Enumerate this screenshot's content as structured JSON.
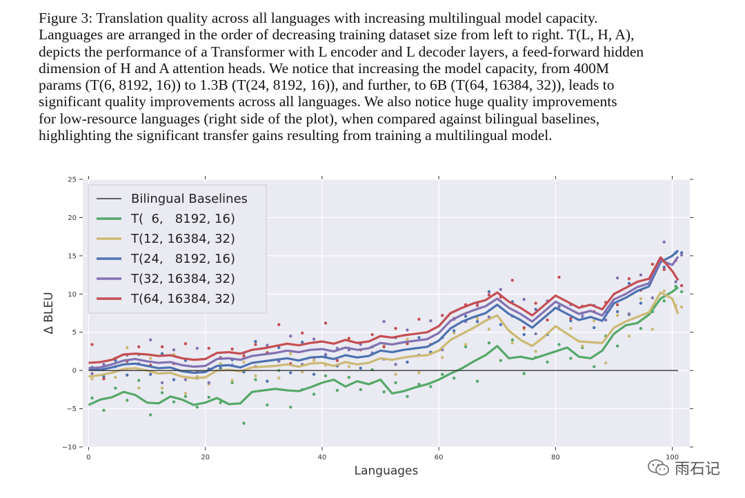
{
  "caption": {
    "lines": [
      "Figure 3: Translation quality across all languages with increasing multilingual model capacity.",
      "Languages are arranged in the order of decreasing training dataset size from left to right. T(L, H, A),",
      "depicts the performance of a Transformer with L encoder and L decoder layers, a feed-forward hidden",
      "dimension of H and A attention heads. We notice that increasing the model capacity, from 400M",
      "params (T(6, 8192, 16)) to 1.3B (T(24, 8192, 16)), and further, to 6B (T(64, 16384, 32)), leads to",
      "significant quality improvements across all languages. We also notice huge quality improvements",
      "for low-resource languages (right side of the plot), when compared against bilingual baselines,",
      "highlighting the significant transfer gains resulting from training a multilingual model."
    ]
  },
  "watermark": {
    "text": "雨石记"
  },
  "chart_data": {
    "type": "line",
    "xlabel": "Languages",
    "ylabel": "Δ BLEU",
    "xlim": [
      -1,
      103
    ],
    "ylim": [
      -10,
      25
    ],
    "xticks": [
      0,
      20,
      40,
      60,
      80,
      100
    ],
    "yticks": [
      -10,
      -5,
      0,
      5,
      10,
      15,
      20,
      25
    ],
    "xtick_labels": [
      "0",
      "20",
      "40",
      "60",
      "80",
      "100"
    ],
    "ytick_labels": [
      "−10",
      "−5",
      "0",
      "5",
      "10",
      "15",
      "20",
      "25"
    ],
    "grid": true,
    "legend_position": "top-left",
    "x": [
      0,
      2,
      4,
      6,
      8,
      10,
      12,
      14,
      16,
      18,
      20,
      22,
      24,
      26,
      28,
      30,
      32,
      34,
      36,
      38,
      40,
      42,
      44,
      46,
      48,
      50,
      52,
      54,
      56,
      58,
      60,
      62,
      64,
      66,
      68,
      70,
      72,
      74,
      76,
      78,
      80,
      82,
      84,
      86,
      88,
      90,
      92,
      94,
      96,
      98,
      100,
      101
    ],
    "baseline": {
      "name": "Bilingual Baselines",
      "color": "#333333",
      "y": 0
    },
    "series": [
      {
        "name": "T(64, 16384, 32)",
        "color": "#c44e52",
        "values": [
          1.0,
          1.1,
          1.4,
          2.1,
          2.2,
          2.1,
          1.9,
          2.0,
          1.6,
          1.4,
          1.5,
          2.3,
          2.4,
          2.2,
          2.7,
          2.9,
          3.2,
          3.5,
          3.3,
          3.6,
          3.8,
          3.5,
          4.0,
          3.6,
          3.8,
          4.5,
          4.3,
          4.6,
          4.8,
          5.0,
          5.8,
          7.5,
          8.2,
          8.8,
          9.2,
          10.2,
          9.0,
          8.2,
          7.2,
          8.5,
          9.8,
          9.0,
          8.2,
          8.6,
          8.0,
          10.0,
          10.8,
          11.6,
          12.0,
          14.8,
          13.0,
          11.8
        ]
      },
      {
        "name": "T(32, 16384, 32)",
        "color": "#8172b2",
        "values": [
          0.3,
          0.4,
          0.8,
          1.3,
          1.5,
          1.2,
          1.0,
          1.1,
          0.7,
          0.5,
          0.6,
          1.5,
          1.6,
          1.4,
          1.9,
          2.1,
          2.3,
          2.6,
          2.4,
          2.7,
          2.8,
          2.5,
          3.0,
          2.7,
          2.9,
          3.6,
          3.4,
          3.7,
          3.9,
          4.1,
          4.9,
          6.5,
          7.3,
          7.9,
          8.4,
          9.4,
          8.2,
          7.4,
          6.4,
          7.7,
          9.0,
          8.2,
          7.4,
          7.8,
          7.2,
          9.3,
          10.0,
          10.9,
          11.4,
          14.4,
          13.8,
          14.9
        ]
      },
      {
        "name": "T(24,   8192, 16)",
        "color": "#4c72b0",
        "values": [
          0.2,
          0.1,
          0.4,
          0.8,
          0.9,
          0.6,
          0.3,
          0.4,
          -0.1,
          -0.3,
          -0.2,
          0.6,
          0.7,
          0.4,
          1.0,
          1.2,
          1.4,
          1.6,
          1.3,
          1.7,
          1.8,
          1.5,
          2.0,
          1.7,
          1.9,
          2.6,
          2.4,
          2.7,
          2.9,
          3.1,
          3.9,
          5.5,
          6.4,
          7.0,
          7.5,
          8.6,
          7.4,
          6.6,
          5.6,
          6.9,
          8.2,
          7.4,
          6.6,
          7.0,
          6.5,
          8.8,
          9.5,
          10.4,
          11.0,
          14.2,
          15.0,
          15.7
        ]
      },
      {
        "name": "T(12, 16384, 32)",
        "color": "#ccb974",
        "values": [
          -0.8,
          -0.6,
          -0.3,
          0.2,
          0.3,
          0.0,
          -0.4,
          -0.3,
          -0.8,
          -1.0,
          -0.9,
          0.0,
          0.1,
          -0.1,
          0.4,
          0.5,
          0.6,
          0.8,
          0.5,
          0.9,
          1.0,
          0.6,
          1.1,
          0.8,
          1.0,
          1.6,
          1.4,
          1.7,
          1.9,
          2.0,
          2.6,
          4.0,
          4.8,
          5.6,
          6.5,
          7.2,
          5.2,
          4.0,
          3.2,
          4.4,
          5.8,
          4.8,
          3.8,
          3.7,
          3.6,
          5.6,
          6.4,
          7.0,
          7.6,
          10.2,
          9.4,
          7.4
        ]
      },
      {
        "name": "T(  6,   8192, 16)",
        "color": "#55a868",
        "values": [
          -4.5,
          -3.8,
          -3.5,
          -2.8,
          -3.2,
          -4.2,
          -4.3,
          -3.4,
          -3.8,
          -4.5,
          -4.2,
          -3.6,
          -4.4,
          -4.3,
          -2.8,
          -2.6,
          -2.4,
          -2.6,
          -2.7,
          -2.2,
          -1.6,
          -1.2,
          -2.1,
          -1.4,
          -1.8,
          -1.2,
          -3.0,
          -2.7,
          -2.2,
          -1.8,
          -1.2,
          -0.4,
          0.3,
          1.2,
          2.0,
          3.2,
          1.6,
          1.8,
          1.5,
          2.0,
          2.5,
          3.0,
          1.8,
          1.6,
          2.6,
          4.8,
          5.9,
          6.2,
          7.3,
          9.4,
          10.3,
          10.9
        ]
      }
    ],
    "scatter_offsets": [
      0.9,
      -0.7,
      1.6,
      -1.4,
      0.4,
      -1.9,
      1.2,
      -0.3,
      2.4,
      -1.1,
      0.7,
      -2.2,
      1.9,
      -0.6,
      0.2,
      -1.6,
      2.8,
      -0.9,
      1.4,
      -2.6
    ]
  }
}
